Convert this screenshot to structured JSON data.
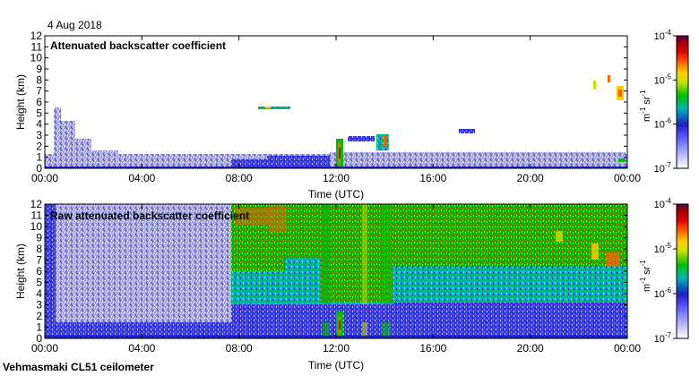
{
  "date_label": "4 Aug 2018",
  "footer_label": "Vehmasmaki CL51 ceilometer",
  "colors": {
    "scale": [
      "#ffffff",
      "#c8c8ff",
      "#5050ff",
      "#2020c0",
      "#00b4b4",
      "#00c000",
      "#c8e000",
      "#ffd000",
      "#ff6000",
      "#e00000",
      "#a00000",
      "#500050"
    ],
    "frame": "#000000"
  },
  "chart_data": [
    {
      "type": "heatmap",
      "title": "Attenuated backscatter coefficient",
      "xlabel": "Time (UTC)",
      "ylabel": "Height (km)",
      "x_ticks": [
        "00:00",
        "04:00",
        "08:00",
        "12:00",
        "16:00",
        "20:00",
        "00:00"
      ],
      "x_range_hours": [
        0,
        24
      ],
      "y_ticks": [
        "0",
        "1",
        "2",
        "3",
        "4",
        "5",
        "6",
        "7",
        "8",
        "9",
        "10",
        "11",
        "12"
      ],
      "y_range_km": [
        0,
        12
      ],
      "colorbar": {
        "scale": "log",
        "range": [
          1e-07,
          0.0001
        ],
        "tick_bases": [
          "10",
          "10",
          "10",
          "10"
        ],
        "tick_exponents": [
          "-7",
          "-6",
          "-5",
          "-4"
        ],
        "unit_main": "m",
        "unit_exp1": "-1",
        "unit_mid": "sr",
        "unit_exp2": "-1"
      }
    },
    {
      "type": "heatmap",
      "title": "Raw attenuated backscatter coefficient",
      "xlabel": "Time (UTC)",
      "ylabel": "Height (km)",
      "x_ticks": [
        "00:00",
        "04:00",
        "08:00",
        "12:00",
        "16:00",
        "20:00",
        "00:00"
      ],
      "x_range_hours": [
        0,
        24
      ],
      "y_ticks": [
        "0",
        "1",
        "2",
        "3",
        "4",
        "5",
        "6",
        "7",
        "8",
        "9",
        "10",
        "11",
        "12"
      ],
      "y_range_km": [
        0,
        12
      ],
      "colorbar": {
        "scale": "log",
        "range": [
          1e-07,
          0.0001
        ],
        "tick_bases": [
          "10",
          "10",
          "10",
          "10"
        ],
        "tick_exponents": [
          "-7",
          "-6",
          "-5",
          "-4"
        ],
        "unit_main": "m",
        "unit_exp1": "-1",
        "unit_mid": "sr",
        "unit_exp2": "-1"
      }
    }
  ]
}
